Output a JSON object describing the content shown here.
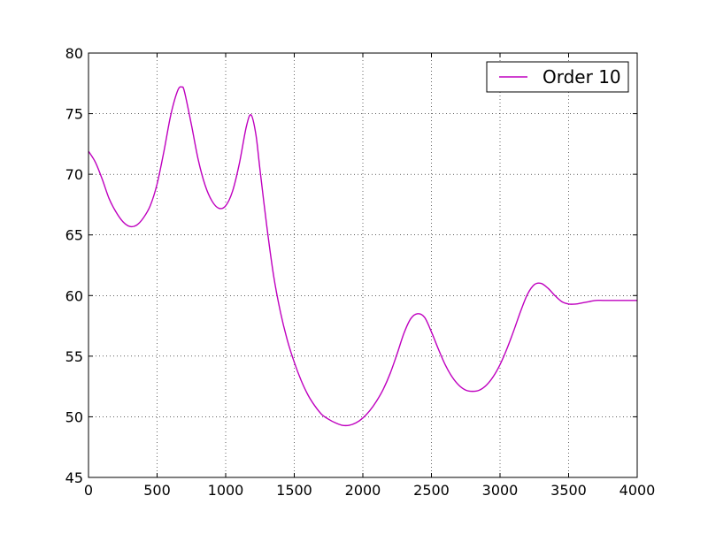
{
  "chart_data": {
    "type": "line",
    "title": "",
    "xlabel": "",
    "ylabel": "",
    "xlim": [
      0,
      4000
    ],
    "ylim": [
      45,
      80
    ],
    "x_ticks": [
      0,
      500,
      1000,
      1500,
      2000,
      2500,
      3000,
      3500,
      4000
    ],
    "y_ticks": [
      45,
      50,
      55,
      60,
      65,
      70,
      75,
      80
    ],
    "grid": true,
    "grid_style": "dotted",
    "legend_position": "top-right",
    "series": [
      {
        "name": "Order 10",
        "color": "#bf00bf",
        "x": [
          0,
          50,
          100,
          150,
          200,
          250,
          300,
          350,
          400,
          450,
          500,
          550,
          600,
          650,
          680,
          700,
          750,
          800,
          850,
          900,
          950,
          1000,
          1050,
          1100,
          1150,
          1185,
          1220,
          1250,
          1300,
          1350,
          1400,
          1450,
          1500,
          1550,
          1600,
          1650,
          1700,
          1750,
          1800,
          1850,
          1900,
          1950,
          2000,
          2050,
          2100,
          2150,
          2200,
          2250,
          2300,
          2350,
          2400,
          2450,
          2500,
          2550,
          2600,
          2650,
          2700,
          2750,
          2800,
          2850,
          2900,
          2950,
          3000,
          3050,
          3100,
          3150,
          3200,
          3250,
          3300,
          3350,
          3400,
          3450,
          3500,
          3550,
          3600,
          3650,
          3700,
          3750,
          3800,
          3850,
          3900,
          3950,
          4000
        ],
        "y": [
          71.9,
          71.0,
          69.6,
          68.0,
          66.9,
          66.1,
          65.7,
          65.8,
          66.4,
          67.4,
          69.2,
          71.9,
          74.9,
          76.9,
          77.2,
          76.8,
          74.1,
          71.2,
          69.1,
          67.8,
          67.2,
          67.4,
          68.6,
          70.9,
          73.9,
          74.9,
          73.3,
          70.4,
          65.7,
          61.6,
          58.6,
          56.3,
          54.5,
          53.0,
          51.8,
          50.9,
          50.2,
          49.8,
          49.5,
          49.3,
          49.3,
          49.5,
          49.9,
          50.5,
          51.3,
          52.3,
          53.6,
          55.2,
          56.9,
          58.1,
          58.5,
          58.2,
          57.0,
          55.6,
          54.3,
          53.3,
          52.6,
          52.2,
          52.1,
          52.2,
          52.6,
          53.3,
          54.3,
          55.6,
          57.1,
          58.7,
          60.1,
          60.9,
          61.0,
          60.6,
          60.0,
          59.5,
          59.3,
          59.3,
          59.4,
          59.5,
          59.6,
          59.6,
          59.6,
          59.6,
          59.6,
          59.6,
          59.6
        ]
      }
    ]
  }
}
